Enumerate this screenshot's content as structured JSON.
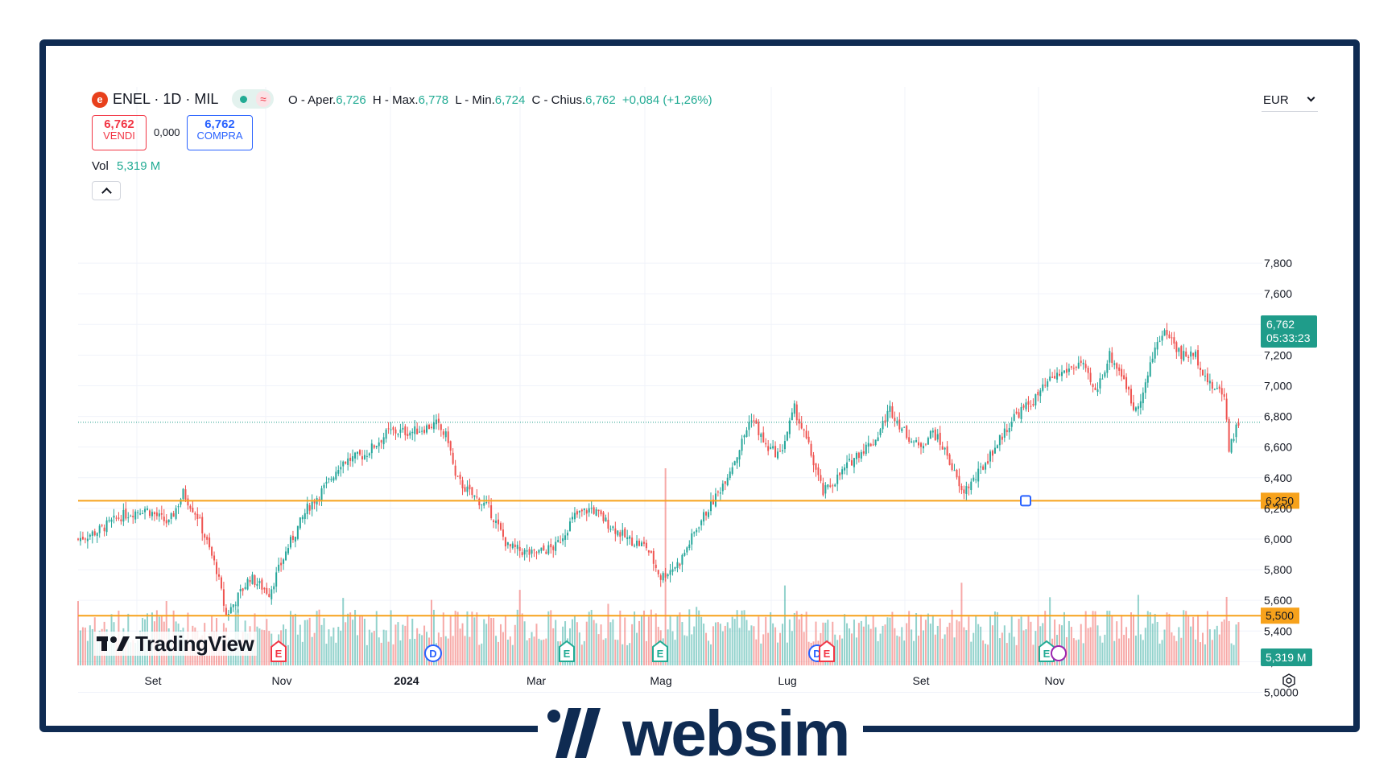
{
  "header": {
    "symbol": "ENEL · 1D · MIL",
    "ohlc": {
      "o_label": "O - Aper.",
      "o_val": "6,726",
      "h_label": "H - Max.",
      "h_val": "6,778",
      "l_label": "L - Min.",
      "l_val": "6,724",
      "c_label": "C - Chius.",
      "c_val": "6,762",
      "change": "+0,084 (+1,26%)"
    }
  },
  "trade": {
    "sell_price": "6,762",
    "sell_label": "VENDI",
    "spread": "0,000",
    "buy_price": "6,762",
    "buy_label": "COMPRA"
  },
  "volume": {
    "label": "Vol",
    "value": "5,319 M"
  },
  "currency": "EUR",
  "price_label": {
    "value": "6,762",
    "countdown": "05:33:23"
  },
  "volume_label": "5,319 M",
  "watermark": "TradingView",
  "brand": "websim",
  "colors": {
    "up": "#26a69a",
    "down": "#ef5350",
    "level": "#f7a21b",
    "frame": "#0f2b52",
    "price_label": "#1f9c8a"
  },
  "chart_data": {
    "type": "candlestick",
    "x_ticks": [
      "Set",
      "Nov",
      "2024",
      "Mar",
      "Mag",
      "Lug",
      "Set",
      "Nov"
    ],
    "y_ticks": [
      "7,800",
      "7,600",
      "7,400",
      "7,200",
      "7,000",
      "6,800",
      "6,600",
      "6,400",
      "6,200",
      "6,000",
      "5,800",
      "5,600",
      "5,400",
      "5,200",
      "5,0000"
    ],
    "ylim": [
      4.9,
      8.0
    ],
    "horizontal_levels": [
      {
        "value": 6.25,
        "label": "6,250"
      },
      {
        "value": 5.5,
        "label": "5,500"
      }
    ],
    "last_price": 6.762,
    "event_markers": [
      {
        "type": "E",
        "color": "red",
        "date": "Nov"
      },
      {
        "type": "D",
        "color": "blue",
        "date": "Gen"
      },
      {
        "type": "E",
        "color": "green",
        "date": "Mar"
      },
      {
        "type": "E",
        "color": "green",
        "date": "Mag"
      },
      {
        "type": "D",
        "color": "blue",
        "date": "Lug"
      },
      {
        "type": "E",
        "color": "red",
        "date": "Lug"
      },
      {
        "type": "E",
        "color": "green",
        "date": "Nov"
      }
    ],
    "close_path": [
      {
        "i": 0,
        "v": 6.0
      },
      {
        "i": 8,
        "v": 6.05
      },
      {
        "i": 18,
        "v": 6.15
      },
      {
        "i": 28,
        "v": 6.2
      },
      {
        "i": 38,
        "v": 6.1
      },
      {
        "i": 44,
        "v": 6.3
      },
      {
        "i": 50,
        "v": 6.15
      },
      {
        "i": 58,
        "v": 5.8
      },
      {
        "i": 62,
        "v": 5.5
      },
      {
        "i": 66,
        "v": 5.6
      },
      {
        "i": 72,
        "v": 5.75
      },
      {
        "i": 80,
        "v": 5.65
      },
      {
        "i": 88,
        "v": 5.95
      },
      {
        "i": 96,
        "v": 6.2
      },
      {
        "i": 104,
        "v": 6.35
      },
      {
        "i": 110,
        "v": 6.5
      },
      {
        "i": 120,
        "v": 6.55
      },
      {
        "i": 130,
        "v": 6.7
      },
      {
        "i": 140,
        "v": 6.7
      },
      {
        "i": 150,
        "v": 6.75
      },
      {
        "i": 155,
        "v": 6.65
      },
      {
        "i": 158,
        "v": 6.4
      },
      {
        "i": 164,
        "v": 6.3
      },
      {
        "i": 172,
        "v": 6.2
      },
      {
        "i": 180,
        "v": 5.95
      },
      {
        "i": 190,
        "v": 5.9
      },
      {
        "i": 200,
        "v": 5.95
      },
      {
        "i": 208,
        "v": 6.15
      },
      {
        "i": 215,
        "v": 6.2
      },
      {
        "i": 222,
        "v": 6.1
      },
      {
        "i": 230,
        "v": 6.0
      },
      {
        "i": 238,
        "v": 5.95
      },
      {
        "i": 244,
        "v": 5.75
      },
      {
        "i": 252,
        "v": 5.85
      },
      {
        "i": 260,
        "v": 6.1
      },
      {
        "i": 268,
        "v": 6.3
      },
      {
        "i": 276,
        "v": 6.55
      },
      {
        "i": 282,
        "v": 6.8
      },
      {
        "i": 288,
        "v": 6.6
      },
      {
        "i": 294,
        "v": 6.55
      },
      {
        "i": 300,
        "v": 6.85
      },
      {
        "i": 306,
        "v": 6.6
      },
      {
        "i": 312,
        "v": 6.3
      },
      {
        "i": 318,
        "v": 6.4
      },
      {
        "i": 326,
        "v": 6.55
      },
      {
        "i": 334,
        "v": 6.65
      },
      {
        "i": 340,
        "v": 6.85
      },
      {
        "i": 346,
        "v": 6.7
      },
      {
        "i": 352,
        "v": 6.6
      },
      {
        "i": 358,
        "v": 6.7
      },
      {
        "i": 364,
        "v": 6.55
      },
      {
        "i": 370,
        "v": 6.3
      },
      {
        "i": 376,
        "v": 6.4
      },
      {
        "i": 384,
        "v": 6.6
      },
      {
        "i": 392,
        "v": 6.8
      },
      {
        "i": 400,
        "v": 6.9
      },
      {
        "i": 408,
        "v": 7.05
      },
      {
        "i": 414,
        "v": 7.1
      },
      {
        "i": 420,
        "v": 7.15
      },
      {
        "i": 426,
        "v": 6.95
      },
      {
        "i": 432,
        "v": 7.2
      },
      {
        "i": 438,
        "v": 7.05
      },
      {
        "i": 442,
        "v": 6.85
      },
      {
        "i": 446,
        "v": 6.95
      },
      {
        "i": 452,
        "v": 7.3
      },
      {
        "i": 456,
        "v": 7.35
      },
      {
        "i": 462,
        "v": 7.2
      },
      {
        "i": 468,
        "v": 7.2
      },
      {
        "i": 474,
        "v": 7.0
      },
      {
        "i": 480,
        "v": 6.95
      },
      {
        "i": 482,
        "v": 6.6
      },
      {
        "i": 486,
        "v": 6.762
      }
    ]
  }
}
